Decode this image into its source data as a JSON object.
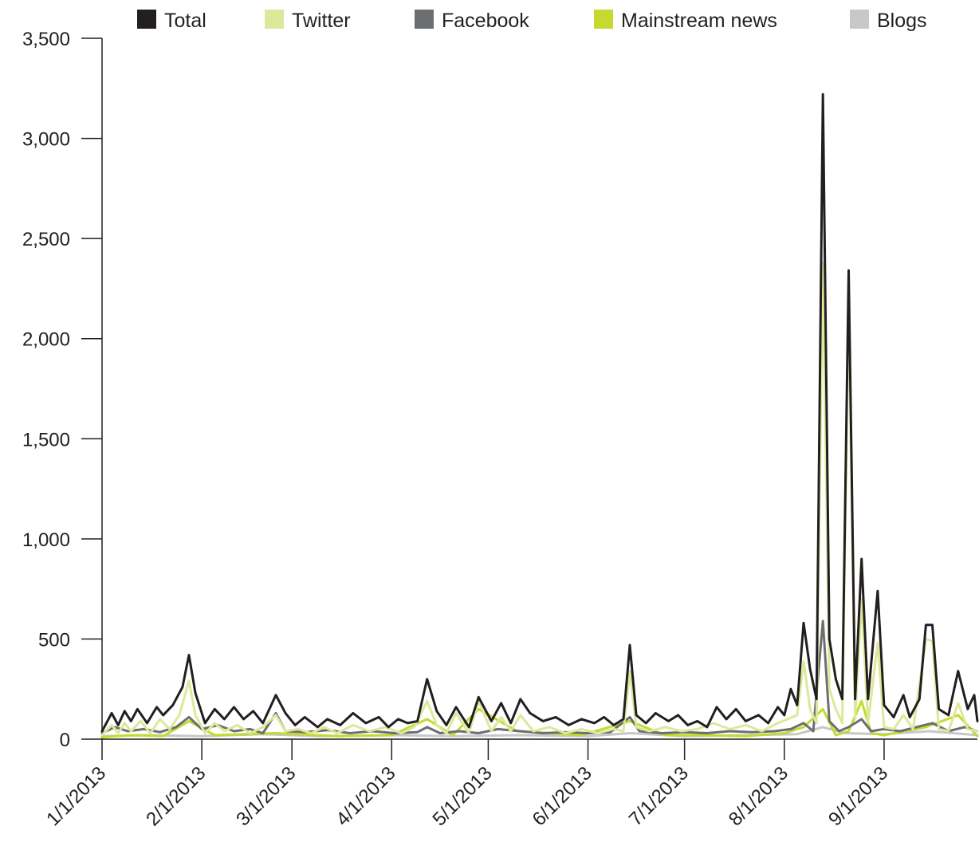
{
  "chart_data": {
    "type": "line",
    "title": "",
    "xlabel": "",
    "ylabel": "",
    "ylim": [
      0,
      3500
    ],
    "xlim": [
      "2013-01-01",
      "2013-09-30"
    ],
    "yticks": [
      0,
      500,
      1000,
      1500,
      2000,
      2500,
      3000,
      3500
    ],
    "ytick_labels": [
      "0",
      "500",
      "1,000",
      "1,500",
      "2,000",
      "2,500",
      "3,000",
      "3,500"
    ],
    "xticks": [
      "2013-01-01",
      "2013-02-01",
      "2013-03-01",
      "2013-04-01",
      "2013-05-01",
      "2013-06-01",
      "2013-07-01",
      "2013-08-01",
      "2013-09-01"
    ],
    "xtick_labels": [
      "1/1/2013",
      "2/1/2013",
      "3/1/2013",
      "4/1/2013",
      "5/1/2013",
      "6/1/2013",
      "7/1/2013",
      "8/1/2013",
      "9/1/2013"
    ],
    "legend_position": "top",
    "grid": false,
    "series": [
      {
        "name": "Total",
        "color": "#231f20",
        "points": [
          [
            "2013-01-01",
            40
          ],
          [
            "2013-01-04",
            130
          ],
          [
            "2013-01-06",
            70
          ],
          [
            "2013-01-08",
            140
          ],
          [
            "2013-01-10",
            90
          ],
          [
            "2013-01-12",
            150
          ],
          [
            "2013-01-15",
            80
          ],
          [
            "2013-01-18",
            160
          ],
          [
            "2013-01-20",
            120
          ],
          [
            "2013-01-23",
            170
          ],
          [
            "2013-01-26",
            260
          ],
          [
            "2013-01-28",
            420
          ],
          [
            "2013-01-30",
            230
          ],
          [
            "2013-02-02",
            80
          ],
          [
            "2013-02-05",
            150
          ],
          [
            "2013-02-08",
            100
          ],
          [
            "2013-02-11",
            160
          ],
          [
            "2013-02-14",
            100
          ],
          [
            "2013-02-17",
            140
          ],
          [
            "2013-02-20",
            80
          ],
          [
            "2013-02-24",
            220
          ],
          [
            "2013-02-27",
            130
          ],
          [
            "2013-03-02",
            70
          ],
          [
            "2013-03-05",
            110
          ],
          [
            "2013-03-09",
            60
          ],
          [
            "2013-03-12",
            100
          ],
          [
            "2013-03-16",
            70
          ],
          [
            "2013-03-20",
            130
          ],
          [
            "2013-03-24",
            80
          ],
          [
            "2013-03-28",
            110
          ],
          [
            "2013-03-31",
            60
          ],
          [
            "2013-04-03",
            100
          ],
          [
            "2013-04-06",
            80
          ],
          [
            "2013-04-09",
            90
          ],
          [
            "2013-04-12",
            300
          ],
          [
            "2013-04-15",
            140
          ],
          [
            "2013-04-18",
            70
          ],
          [
            "2013-04-21",
            160
          ],
          [
            "2013-04-25",
            60
          ],
          [
            "2013-04-28",
            210
          ],
          [
            "2013-05-02",
            90
          ],
          [
            "2013-05-05",
            180
          ],
          [
            "2013-05-08",
            80
          ],
          [
            "2013-05-11",
            200
          ],
          [
            "2013-05-14",
            130
          ],
          [
            "2013-05-18",
            90
          ],
          [
            "2013-05-22",
            110
          ],
          [
            "2013-05-26",
            70
          ],
          [
            "2013-05-30",
            100
          ],
          [
            "2013-06-03",
            80
          ],
          [
            "2013-06-06",
            110
          ],
          [
            "2013-06-09",
            70
          ],
          [
            "2013-06-12",
            100
          ],
          [
            "2013-06-14",
            470
          ],
          [
            "2013-06-16",
            120
          ],
          [
            "2013-06-19",
            80
          ],
          [
            "2013-06-22",
            130
          ],
          [
            "2013-06-26",
            90
          ],
          [
            "2013-06-29",
            120
          ],
          [
            "2013-07-02",
            70
          ],
          [
            "2013-07-05",
            90
          ],
          [
            "2013-07-08",
            60
          ],
          [
            "2013-07-11",
            160
          ],
          [
            "2013-07-14",
            100
          ],
          [
            "2013-07-17",
            150
          ],
          [
            "2013-07-20",
            90
          ],
          [
            "2013-07-24",
            120
          ],
          [
            "2013-07-27",
            80
          ],
          [
            "2013-07-30",
            160
          ],
          [
            "2013-08-01",
            120
          ],
          [
            "2013-08-03",
            250
          ],
          [
            "2013-08-05",
            170
          ],
          [
            "2013-08-07",
            580
          ],
          [
            "2013-08-09",
            350
          ],
          [
            "2013-08-11",
            200
          ],
          [
            "2013-08-13",
            3220
          ],
          [
            "2013-08-15",
            500
          ],
          [
            "2013-08-17",
            300
          ],
          [
            "2013-08-19",
            200
          ],
          [
            "2013-08-21",
            2340
          ],
          [
            "2013-08-23",
            200
          ],
          [
            "2013-08-25",
            900
          ],
          [
            "2013-08-27",
            200
          ],
          [
            "2013-08-30",
            740
          ],
          [
            "2013-09-01",
            170
          ],
          [
            "2013-09-04",
            110
          ],
          [
            "2013-09-07",
            220
          ],
          [
            "2013-09-09",
            110
          ],
          [
            "2013-09-12",
            200
          ],
          [
            "2013-09-14",
            570
          ],
          [
            "2013-09-16",
            570
          ],
          [
            "2013-09-18",
            150
          ],
          [
            "2013-09-21",
            120
          ],
          [
            "2013-09-24",
            340
          ],
          [
            "2013-09-27",
            150
          ],
          [
            "2013-09-29",
            220
          ],
          [
            "2013-09-30",
            90
          ]
        ]
      },
      {
        "name": "Twitter",
        "color": "#dde89a",
        "points": [
          [
            "2013-01-01",
            20
          ],
          [
            "2013-01-04",
            70
          ],
          [
            "2013-01-06",
            30
          ],
          [
            "2013-01-08",
            80
          ],
          [
            "2013-01-10",
            40
          ],
          [
            "2013-01-13",
            90
          ],
          [
            "2013-01-16",
            30
          ],
          [
            "2013-01-19",
            100
          ],
          [
            "2013-01-22",
            50
          ],
          [
            "2013-01-25",
            120
          ],
          [
            "2013-01-28",
            290
          ],
          [
            "2013-01-30",
            120
          ],
          [
            "2013-02-02",
            30
          ],
          [
            "2013-02-05",
            80
          ],
          [
            "2013-02-08",
            40
          ],
          [
            "2013-02-12",
            70
          ],
          [
            "2013-02-16",
            30
          ],
          [
            "2013-02-20",
            60
          ],
          [
            "2013-02-24",
            120
          ],
          [
            "2013-02-27",
            40
          ],
          [
            "2013-03-03",
            50
          ],
          [
            "2013-03-07",
            30
          ],
          [
            "2013-03-11",
            60
          ],
          [
            "2013-03-15",
            30
          ],
          [
            "2013-03-20",
            70
          ],
          [
            "2013-03-25",
            40
          ],
          [
            "2013-03-30",
            60
          ],
          [
            "2013-04-04",
            30
          ],
          [
            "2013-04-08",
            60
          ],
          [
            "2013-04-12",
            190
          ],
          [
            "2013-04-15",
            70
          ],
          [
            "2013-04-18",
            30
          ],
          [
            "2013-04-21",
            130
          ],
          [
            "2013-04-25",
            30
          ],
          [
            "2013-04-28",
            190
          ],
          [
            "2013-05-02",
            40
          ],
          [
            "2013-05-05",
            110
          ],
          [
            "2013-05-08",
            40
          ],
          [
            "2013-05-11",
            120
          ],
          [
            "2013-05-15",
            40
          ],
          [
            "2013-05-20",
            60
          ],
          [
            "2013-05-25",
            30
          ],
          [
            "2013-05-30",
            50
          ],
          [
            "2013-06-04",
            30
          ],
          [
            "2013-06-09",
            50
          ],
          [
            "2013-06-12",
            40
          ],
          [
            "2013-06-14",
            340
          ],
          [
            "2013-06-16",
            60
          ],
          [
            "2013-06-20",
            40
          ],
          [
            "2013-06-25",
            60
          ],
          [
            "2013-06-30",
            40
          ],
          [
            "2013-07-05",
            50
          ],
          [
            "2013-07-10",
            80
          ],
          [
            "2013-07-15",
            50
          ],
          [
            "2013-07-20",
            70
          ],
          [
            "2013-07-25",
            40
          ],
          [
            "2013-07-30",
            80
          ],
          [
            "2013-08-02",
            100
          ],
          [
            "2013-08-05",
            120
          ],
          [
            "2013-08-07",
            390
          ],
          [
            "2013-08-09",
            150
          ],
          [
            "2013-08-11",
            80
          ],
          [
            "2013-08-13",
            2380
          ],
          [
            "2013-08-15",
            250
          ],
          [
            "2013-08-17",
            150
          ],
          [
            "2013-08-19",
            80
          ],
          [
            "2013-08-21",
            2200
          ],
          [
            "2013-08-23",
            100
          ],
          [
            "2013-08-25",
            700
          ],
          [
            "2013-08-27",
            80
          ],
          [
            "2013-08-30",
            480
          ],
          [
            "2013-09-01",
            60
          ],
          [
            "2013-09-04",
            50
          ],
          [
            "2013-09-07",
            120
          ],
          [
            "2013-09-10",
            50
          ],
          [
            "2013-09-14",
            500
          ],
          [
            "2013-09-16",
            490
          ],
          [
            "2013-09-18",
            50
          ],
          [
            "2013-09-21",
            40
          ],
          [
            "2013-09-24",
            180
          ],
          [
            "2013-09-27",
            50
          ],
          [
            "2013-09-30",
            40
          ]
        ]
      },
      {
        "name": "Facebook",
        "color": "#6d6e70",
        "points": [
          [
            "2013-01-01",
            30
          ],
          [
            "2013-01-05",
            60
          ],
          [
            "2013-01-09",
            40
          ],
          [
            "2013-01-14",
            50
          ],
          [
            "2013-01-19",
            35
          ],
          [
            "2013-01-24",
            60
          ],
          [
            "2013-01-28",
            110
          ],
          [
            "2013-02-01",
            50
          ],
          [
            "2013-02-06",
            70
          ],
          [
            "2013-02-11",
            40
          ],
          [
            "2013-02-16",
            50
          ],
          [
            "2013-02-20",
            30
          ],
          [
            "2013-02-24",
            130
          ],
          [
            "2013-02-27",
            40
          ],
          [
            "2013-03-05",
            35
          ],
          [
            "2013-03-12",
            45
          ],
          [
            "2013-03-19",
            30
          ],
          [
            "2013-03-26",
            40
          ],
          [
            "2013-04-02",
            30
          ],
          [
            "2013-04-09",
            35
          ],
          [
            "2013-04-12",
            60
          ],
          [
            "2013-04-16",
            30
          ],
          [
            "2013-04-22",
            40
          ],
          [
            "2013-04-28",
            30
          ],
          [
            "2013-05-04",
            50
          ],
          [
            "2013-05-11",
            40
          ],
          [
            "2013-05-18",
            30
          ],
          [
            "2013-05-25",
            35
          ],
          [
            "2013-06-01",
            30
          ],
          [
            "2013-06-08",
            35
          ],
          [
            "2013-06-14",
            110
          ],
          [
            "2013-06-17",
            40
          ],
          [
            "2013-06-24",
            30
          ],
          [
            "2013-07-01",
            35
          ],
          [
            "2013-07-08",
            30
          ],
          [
            "2013-07-15",
            40
          ],
          [
            "2013-07-22",
            35
          ],
          [
            "2013-07-29",
            40
          ],
          [
            "2013-08-03",
            50
          ],
          [
            "2013-08-07",
            80
          ],
          [
            "2013-08-10",
            40
          ],
          [
            "2013-08-13",
            590
          ],
          [
            "2013-08-15",
            90
          ],
          [
            "2013-08-18",
            40
          ],
          [
            "2013-08-21",
            60
          ],
          [
            "2013-08-25",
            100
          ],
          [
            "2013-08-28",
            40
          ],
          [
            "2013-09-01",
            50
          ],
          [
            "2013-09-06",
            40
          ],
          [
            "2013-09-11",
            60
          ],
          [
            "2013-09-16",
            80
          ],
          [
            "2013-09-21",
            40
          ],
          [
            "2013-09-26",
            60
          ],
          [
            "2013-09-30",
            40
          ]
        ]
      },
      {
        "name": "Mainstream news",
        "color": "#c6d92f",
        "points": [
          [
            "2013-01-01",
            10
          ],
          [
            "2013-01-10",
            20
          ],
          [
            "2013-01-20",
            15
          ],
          [
            "2013-01-28",
            90
          ],
          [
            "2013-02-05",
            20
          ],
          [
            "2013-02-24",
            30
          ],
          [
            "2013-03-15",
            15
          ],
          [
            "2013-04-01",
            20
          ],
          [
            "2013-04-12",
            100
          ],
          [
            "2013-04-20",
            20
          ],
          [
            "2013-04-28",
            150
          ],
          [
            "2013-05-10",
            40
          ],
          [
            "2013-05-30",
            20
          ],
          [
            "2013-06-14",
            90
          ],
          [
            "2013-06-25",
            20
          ],
          [
            "2013-07-05",
            20
          ],
          [
            "2013-07-20",
            15
          ],
          [
            "2013-08-01",
            30
          ],
          [
            "2013-08-07",
            60
          ],
          [
            "2013-08-13",
            150
          ],
          [
            "2013-08-17",
            20
          ],
          [
            "2013-08-21",
            40
          ],
          [
            "2013-08-25",
            190
          ],
          [
            "2013-08-28",
            30
          ],
          [
            "2013-09-01",
            20
          ],
          [
            "2013-09-14",
            60
          ],
          [
            "2013-09-24",
            120
          ],
          [
            "2013-09-30",
            15
          ]
        ]
      },
      {
        "name": "Blogs",
        "color": "#c7c8ca",
        "points": [
          [
            "2013-01-01",
            15
          ],
          [
            "2013-01-15",
            20
          ],
          [
            "2013-02-01",
            15
          ],
          [
            "2013-02-20",
            25
          ],
          [
            "2013-03-10",
            15
          ],
          [
            "2013-04-01",
            20
          ],
          [
            "2013-04-20",
            15
          ],
          [
            "2013-05-10",
            20
          ],
          [
            "2013-06-01",
            15
          ],
          [
            "2013-06-14",
            30
          ],
          [
            "2013-07-01",
            15
          ],
          [
            "2013-07-20",
            20
          ],
          [
            "2013-08-05",
            25
          ],
          [
            "2013-08-13",
            60
          ],
          [
            "2013-08-20",
            30
          ],
          [
            "2013-09-01",
            25
          ],
          [
            "2013-09-15",
            40
          ],
          [
            "2013-09-30",
            20
          ]
        ]
      }
    ]
  }
}
